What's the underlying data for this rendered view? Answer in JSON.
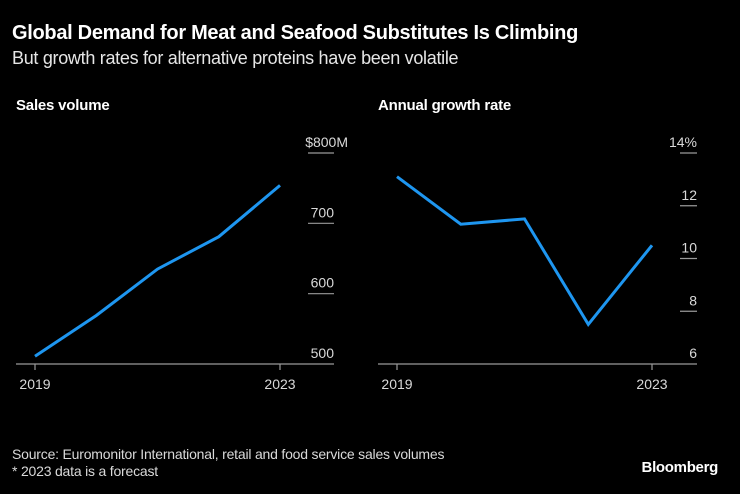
{
  "title": "Global Demand for Meat and Seafood Substitutes Is Climbing",
  "subtitle": "But growth rates for alternative proteins have been volatile",
  "footer": {
    "source": "Source: Euromonitor International, retail and food service sales volumes",
    "note": "* 2023 data is a forecast",
    "brand": "Bloomberg"
  },
  "colors": {
    "line": "#1e96f0",
    "background": "#000000",
    "axis": "#999999"
  },
  "chart_data": [
    {
      "type": "line",
      "title": "Sales volume",
      "x": [
        2019,
        2020,
        2021,
        2022,
        2023
      ],
      "series": [
        {
          "name": "Sales volume",
          "values": [
            511,
            569,
            635,
            681,
            754
          ]
        }
      ],
      "xticks": [
        "2019",
        "2023"
      ],
      "yticks": [
        500,
        600,
        700,
        800
      ],
      "ytick_labels": [
        "500",
        "600",
        "700",
        "$800M"
      ],
      "ylim": [
        500,
        800
      ],
      "xlabel": "",
      "ylabel": "",
      "unit": "$M",
      "y_axis_side": "right",
      "grid": false
    },
    {
      "type": "line",
      "title": "Annual growth rate",
      "x": [
        2019,
        2020,
        2021,
        2022,
        2023
      ],
      "series": [
        {
          "name": "Annual growth rate",
          "values": [
            13.1,
            11.3,
            11.5,
            7.5,
            10.5
          ]
        }
      ],
      "xticks": [
        "2019",
        "2023"
      ],
      "yticks": [
        6,
        8,
        10,
        12,
        14
      ],
      "ytick_labels": [
        "6",
        "8",
        "10",
        "12",
        "14%"
      ],
      "ylim": [
        6,
        14
      ],
      "xlabel": "",
      "ylabel": "",
      "unit": "%",
      "y_axis_side": "right",
      "grid": false
    }
  ]
}
